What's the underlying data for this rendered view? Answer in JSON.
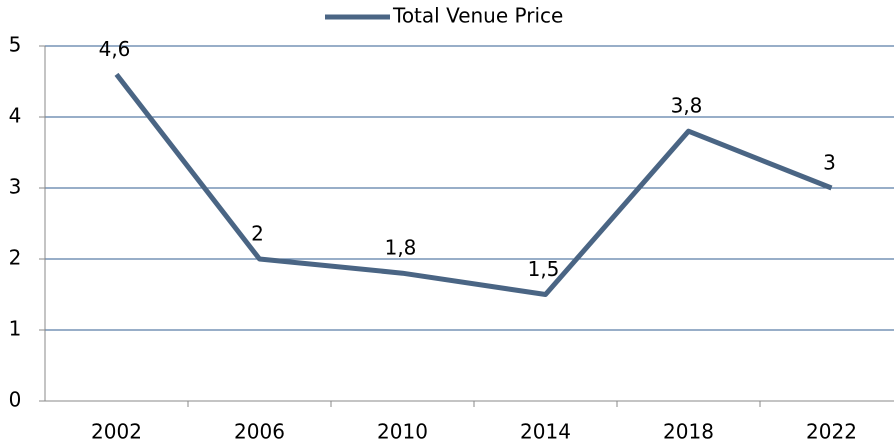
{
  "chart_data": {
    "type": "line",
    "categories": [
      "2002",
      "2006",
      "2010",
      "2014",
      "2018",
      "2022"
    ],
    "series": [
      {
        "name": "Total Venue Price",
        "color": "#4a6584",
        "values": [
          4.6,
          2,
          1.8,
          1.5,
          3.8,
          3
        ],
        "value_labels": [
          "4,6",
          "2",
          "1,8",
          "1,5",
          "3,8",
          "3"
        ]
      }
    ],
    "ylim": [
      0,
      5
    ],
    "yticks": [
      0,
      1,
      2,
      3,
      4,
      5
    ],
    "grid": true,
    "legend": "top"
  }
}
